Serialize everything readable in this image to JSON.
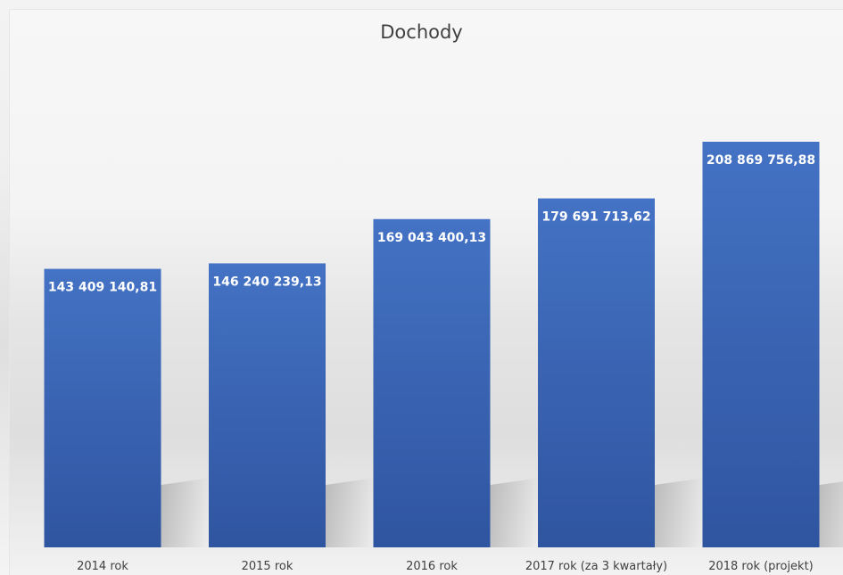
{
  "chart_data": {
    "type": "bar",
    "title": "Dochody",
    "categories": [
      "2014 rok",
      "2015 rok",
      "2016 rok",
      "2017 rok  (za 3 kwartały)",
      "2018 rok (projekt)"
    ],
    "values": [
      143409140.81,
      146240239.13,
      169043400.13,
      179691713.62,
      208869756.88
    ],
    "value_labels": [
      "143 409 140,81",
      "146 240 239,13",
      "169 043 400,13",
      "179 691 713,62",
      "208 869 756,88"
    ],
    "xlabel": "",
    "ylabel": "",
    "ylim": [
      0,
      250000000
    ],
    "grid": false,
    "legend": "none",
    "colors": {
      "bar_top": "#4472c4",
      "bar_bottom": "#2f55a0",
      "label": "#ffffff",
      "axis_text": "#404040"
    }
  }
}
